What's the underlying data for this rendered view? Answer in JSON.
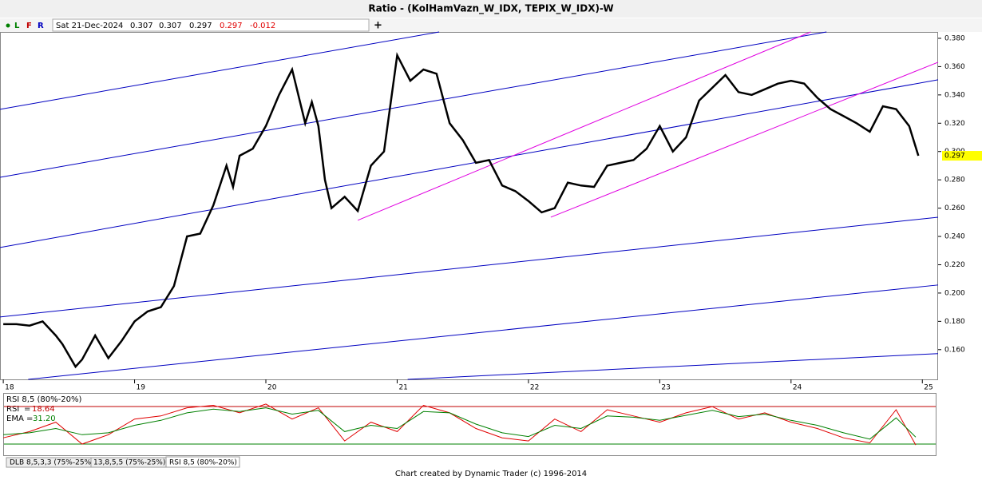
{
  "toolbar": {
    "buttons": [
      "L",
      "F",
      "R"
    ],
    "date": "Sat 21-Dec-2024",
    "open": 0.307,
    "high": 0.307,
    "low": 0.297,
    "close": 0.297,
    "change": -0.012
  },
  "chart_data": [
    {
      "type": "line",
      "title": "Ratio - (KolHamVazn_W_IDX, TEPIX_W_IDX)-W",
      "x": [
        18.0,
        18.1,
        18.2,
        18.3,
        18.4,
        18.45,
        18.55,
        18.6,
        18.7,
        18.8,
        18.9,
        19.0,
        19.1,
        19.2,
        19.3,
        19.4,
        19.5,
        19.6,
        19.7,
        19.75,
        19.8,
        19.9,
        20.0,
        20.1,
        20.2,
        20.3,
        20.35,
        20.4,
        20.45,
        20.5,
        20.6,
        20.7,
        20.8,
        20.9,
        21.0,
        21.1,
        21.2,
        21.3,
        21.4,
        21.5,
        21.6,
        21.7,
        21.8,
        21.9,
        22.0,
        22.1,
        22.2,
        22.3,
        22.4,
        22.5,
        22.6,
        22.7,
        22.8,
        22.9,
        23.0,
        23.1,
        23.2,
        23.3,
        23.4,
        23.5,
        23.6,
        23.7,
        23.8,
        23.9,
        24.0,
        24.1,
        24.2,
        24.3,
        24.4,
        24.5,
        24.6,
        24.7,
        24.8,
        24.9,
        24.97
      ],
      "series": [
        {
          "color": "#000000",
          "values": [
            0.178,
            0.178,
            0.177,
            0.18,
            0.17,
            0.164,
            0.148,
            0.153,
            0.17,
            0.154,
            0.166,
            0.18,
            0.187,
            0.19,
            0.205,
            0.24,
            0.242,
            0.262,
            0.29,
            0.275,
            0.297,
            0.302,
            0.318,
            0.34,
            0.358,
            0.32,
            0.335,
            0.318,
            0.28,
            0.26,
            0.268,
            0.258,
            0.29,
            0.3,
            0.368,
            0.35,
            0.358,
            0.355,
            0.32,
            0.308,
            0.292,
            0.294,
            0.276,
            0.272,
            0.265,
            0.257,
            0.26,
            0.278,
            0.276,
            0.275,
            0.29,
            0.292,
            0.294,
            0.302,
            0.318,
            0.3,
            0.31,
            0.336,
            0.345,
            0.354,
            0.342,
            0.34,
            0.344,
            0.348,
            0.35,
            0.348,
            0.338,
            0.33,
            0.325,
            0.32,
            0.314,
            0.332,
            0.33,
            0.318,
            0.297
          ]
        }
      ],
      "trendlines": [
        {
          "color": "#0000c0",
          "points": [
            [
              17.975,
              0.3298
            ],
            [
              21.32,
              0.3845
            ]
          ]
        },
        {
          "color": "#0000c0",
          "points": [
            [
              17.975,
              0.2818
            ],
            [
              24.27,
              0.3845
            ]
          ]
        },
        {
          "color": "#0000c0",
          "points": [
            [
              17.975,
              0.2322
            ],
            [
              25.12,
              0.3507
            ]
          ]
        },
        {
          "color": "#0000c0",
          "points": [
            [
              17.975,
              0.1831
            ],
            [
              25.12,
              0.2536
            ]
          ]
        },
        {
          "color": "#0000c0",
          "points": [
            [
              18.19,
              0.139
            ],
            [
              25.12,
              0.2057
            ]
          ]
        },
        {
          "color": "#0000c0",
          "points": [
            [
              21.08,
              0.139
            ],
            [
              25.12,
              0.1572
            ]
          ]
        },
        {
          "color": "#e000e0",
          "points": [
            [
              20.7,
              0.2514
            ],
            [
              24.15,
              0.3845
            ]
          ]
        },
        {
          "color": "#e000e0",
          "points": [
            [
              22.17,
              0.2536
            ],
            [
              25.12,
              0.3631
            ]
          ]
        }
      ],
      "price_tag": 0.297,
      "xlim": [
        17.975,
        25.12
      ],
      "xticks": [
        18,
        19,
        20,
        21,
        22,
        23,
        24,
        25
      ],
      "ylim": [
        0.139,
        0.3845
      ],
      "yticks": [
        {
          "value": 0.16,
          "label": "0.160"
        },
        {
          "value": 0.18,
          "label": "0.180"
        },
        {
          "value": 0.2,
          "label": "0.200"
        },
        {
          "value": 0.22,
          "label": "0.220"
        },
        {
          "value": 0.24,
          "label": "0.240"
        },
        {
          "value": 0.26,
          "label": "0.260"
        },
        {
          "value": 0.28,
          "label": "0.280"
        },
        {
          "value": 0.3,
          "label": "0.300"
        },
        {
          "value": 0.32,
          "label": "0.320"
        },
        {
          "value": 0.34,
          "label": "0.340"
        },
        {
          "value": 0.36,
          "label": "0.360"
        },
        {
          "value": 0.38,
          "label": "0.380"
        }
      ]
    },
    {
      "type": "line",
      "title": "RSI 8,5 (80%-20%)",
      "readouts": [
        {
          "name": "RSI",
          "value": 18.64,
          "color": "#c00000"
        },
        {
          "name": "EMA",
          "value": 31.2,
          "label": "31.20",
          "color": "#008000"
        }
      ],
      "x": [
        18.0,
        18.2,
        18.4,
        18.6,
        18.8,
        19.0,
        19.2,
        19.4,
        19.6,
        19.8,
        20.0,
        20.2,
        20.4,
        20.6,
        20.8,
        21.0,
        21.2,
        21.4,
        21.6,
        21.8,
        22.0,
        22.2,
        22.4,
        22.6,
        22.8,
        23.0,
        23.2,
        23.4,
        23.6,
        23.8,
        24.0,
        24.2,
        24.4,
        24.6,
        24.8,
        24.95
      ],
      "series": [
        {
          "name": "RSI",
          "color": "#e00000",
          "values": [
            30,
            40,
            55,
            20,
            35,
            60,
            65,
            78,
            82,
            70,
            84,
            60,
            78,
            25,
            55,
            40,
            82,
            70,
            45,
            30,
            25,
            60,
            40,
            75,
            65,
            55,
            70,
            80,
            60,
            70,
            55,
            45,
            30,
            22,
            75,
            18.64
          ]
        },
        {
          "name": "EMA",
          "color": "#008000",
          "values": [
            35,
            38,
            45,
            35,
            38,
            50,
            58,
            70,
            76,
            72,
            78,
            68,
            74,
            40,
            50,
            45,
            72,
            70,
            52,
            38,
            32,
            50,
            45,
            65,
            63,
            58,
            66,
            74,
            64,
            68,
            58,
            50,
            38,
            28,
            62,
            31.2
          ]
        }
      ],
      "levels": [
        {
          "value": 80,
          "color": "#c00000"
        },
        {
          "value": 20,
          "color": "#008000"
        }
      ],
      "xlim": [
        17.975,
        25.12
      ],
      "ylim": [
        0,
        100
      ]
    }
  ],
  "tabs": [
    "DLB 8,5,3,3 (75%-25%)",
    "13,8,5,5 (75%-25%)",
    "RSI 8,5 (80%-20%)"
  ],
  "footer": "Chart created by Dynamic Trader  (c) 1996-2014"
}
